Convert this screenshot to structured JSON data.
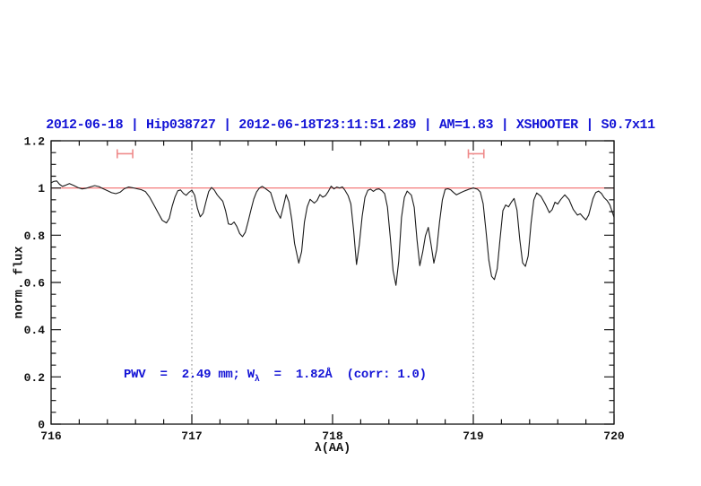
{
  "title": {
    "text": "2012-06-18 | Hip038727 | 2012-06-18T23:11:51.289 | AM=1.83 | XSHOOTER | S0.7x11"
  },
  "annotation": {
    "prefix": "PWV  =  2.49 mm; W",
    "subscript": "λ",
    "suffix": "  =  1.82Å  (corr: 1.0)"
  },
  "chart_data": {
    "type": "line",
    "title": "2012-06-18 | Hip038727 | 2012-06-18T23:11:51.289 | AM=1.83 | XSHOOTER | S0.7x11",
    "xlabel": "λ(AA)",
    "ylabel": "norm. flux",
    "xlim": [
      716,
      720
    ],
    "ylim": [
      0,
      1.2
    ],
    "x_ticks": [
      716,
      717,
      718,
      719,
      720
    ],
    "x_tick_labels": [
      "716",
      "717",
      "718",
      "719",
      "720"
    ],
    "x_minor_step": 0.2,
    "y_ticks": [
      0,
      0.2,
      0.4,
      0.6,
      0.8,
      1,
      1.2
    ],
    "y_tick_labels": [
      "0",
      "0.2",
      "0.4",
      "0.6",
      "0.8",
      "1",
      "1.2"
    ],
    "grid": false,
    "legend": "none",
    "reference_line_y": 1.0,
    "dotted_vlines": [
      717,
      719
    ],
    "range_markers": [
      {
        "x1": 716.47,
        "x2": 716.58,
        "y": 1.145
      },
      {
        "x1": 718.965,
        "x2": 719.075,
        "y": 1.145
      }
    ],
    "colors": {
      "accent_blue": "#1414d6",
      "reference_red": "#f26b6b",
      "marker_red": "#ef8a8a",
      "spectrum": "#1a1a1a",
      "guide_grey": "#777777",
      "frame": "#111111"
    },
    "series": [
      {
        "name": "telluric-spectrum",
        "color": "#1a1a1a",
        "points": [
          [
            716.0,
            1.022
          ],
          [
            716.02,
            1.028
          ],
          [
            716.04,
            1.03
          ],
          [
            716.06,
            1.016
          ],
          [
            716.08,
            1.007
          ],
          [
            716.1,
            1.011
          ],
          [
            716.13,
            1.019
          ],
          [
            716.16,
            1.011
          ],
          [
            716.19,
            1.002
          ],
          [
            716.22,
            0.996
          ],
          [
            716.25,
            0.999
          ],
          [
            716.28,
            1.005
          ],
          [
            716.31,
            1.01
          ],
          [
            716.34,
            1.006
          ],
          [
            716.37,
            0.997
          ],
          [
            716.4,
            0.989
          ],
          [
            716.43,
            0.98
          ],
          [
            716.46,
            0.976
          ],
          [
            716.49,
            0.982
          ],
          [
            716.52,
            0.997
          ],
          [
            716.55,
            1.004
          ],
          [
            716.58,
            1.001
          ],
          [
            716.61,
            0.997
          ],
          [
            716.64,
            0.993
          ],
          [
            716.67,
            0.985
          ],
          [
            716.7,
            0.961
          ],
          [
            716.73,
            0.929
          ],
          [
            716.76,
            0.896
          ],
          [
            716.79,
            0.863
          ],
          [
            716.82,
            0.852
          ],
          [
            716.84,
            0.872
          ],
          [
            716.86,
            0.922
          ],
          [
            716.88,
            0.962
          ],
          [
            716.9,
            0.988
          ],
          [
            716.92,
            0.992
          ],
          [
            716.94,
            0.977
          ],
          [
            716.96,
            0.969
          ],
          [
            716.98,
            0.982
          ],
          [
            717.0,
            0.991
          ],
          [
            717.02,
            0.97
          ],
          [
            717.04,
            0.913
          ],
          [
            717.06,
            0.878
          ],
          [
            717.08,
            0.893
          ],
          [
            717.1,
            0.941
          ],
          [
            717.12,
            0.985
          ],
          [
            717.14,
            1.002
          ],
          [
            717.16,
            0.991
          ],
          [
            717.18,
            0.971
          ],
          [
            717.2,
            0.957
          ],
          [
            717.22,
            0.944
          ],
          [
            717.24,
            0.903
          ],
          [
            717.26,
            0.848
          ],
          [
            717.28,
            0.845
          ],
          [
            717.3,
            0.856
          ],
          [
            717.32,
            0.837
          ],
          [
            717.34,
            0.807
          ],
          [
            717.36,
            0.794
          ],
          [
            717.38,
            0.813
          ],
          [
            717.4,
            0.858
          ],
          [
            717.42,
            0.906
          ],
          [
            717.44,
            0.953
          ],
          [
            717.46,
            0.983
          ],
          [
            717.48,
            1.0
          ],
          [
            717.5,
            1.007
          ],
          [
            717.52,
            0.999
          ],
          [
            717.54,
            0.99
          ],
          [
            717.56,
            0.981
          ],
          [
            717.58,
            0.942
          ],
          [
            717.6,
            0.905
          ],
          [
            717.63,
            0.872
          ],
          [
            717.65,
            0.92
          ],
          [
            717.67,
            0.972
          ],
          [
            717.69,
            0.941
          ],
          [
            717.71,
            0.866
          ],
          [
            717.73,
            0.765
          ],
          [
            717.76,
            0.682
          ],
          [
            717.78,
            0.731
          ],
          [
            717.8,
            0.856
          ],
          [
            717.82,
            0.92
          ],
          [
            717.84,
            0.952
          ],
          [
            717.87,
            0.936
          ],
          [
            717.89,
            0.947
          ],
          [
            717.91,
            0.972
          ],
          [
            717.93,
            0.961
          ],
          [
            717.95,
            0.968
          ],
          [
            717.97,
            0.986
          ],
          [
            717.99,
            1.008
          ],
          [
            718.01,
            0.996
          ],
          [
            718.03,
            1.004
          ],
          [
            718.05,
            1.0
          ],
          [
            718.07,
            1.005
          ],
          [
            718.09,
            0.989
          ],
          [
            718.11,
            0.968
          ],
          [
            718.13,
            0.933
          ],
          [
            718.15,
            0.82
          ],
          [
            718.17,
            0.676
          ],
          [
            718.19,
            0.76
          ],
          [
            718.21,
            0.88
          ],
          [
            718.23,
            0.96
          ],
          [
            718.25,
            0.99
          ],
          [
            718.27,
            0.995
          ],
          [
            718.29,
            0.986
          ],
          [
            718.31,
            0.994
          ],
          [
            718.33,
            0.996
          ],
          [
            718.35,
            0.989
          ],
          [
            718.37,
            0.976
          ],
          [
            718.39,
            0.92
          ],
          [
            718.41,
            0.79
          ],
          [
            718.43,
            0.65
          ],
          [
            718.45,
            0.588
          ],
          [
            718.47,
            0.69
          ],
          [
            718.49,
            0.875
          ],
          [
            718.51,
            0.96
          ],
          [
            718.53,
            0.987
          ],
          [
            718.56,
            0.97
          ],
          [
            718.58,
            0.918
          ],
          [
            718.6,
            0.78
          ],
          [
            718.62,
            0.671
          ],
          [
            718.64,
            0.728
          ],
          [
            718.66,
            0.798
          ],
          [
            718.68,
            0.833
          ],
          [
            718.7,
            0.76
          ],
          [
            718.72,
            0.682
          ],
          [
            718.74,
            0.74
          ],
          [
            718.76,
            0.855
          ],
          [
            718.78,
            0.95
          ],
          [
            718.8,
            0.994
          ],
          [
            718.82,
            0.997
          ],
          [
            718.84,
            0.992
          ],
          [
            718.86,
            0.981
          ],
          [
            718.88,
            0.971
          ],
          [
            718.91,
            0.98
          ],
          [
            718.94,
            0.988
          ],
          [
            718.97,
            0.995
          ],
          [
            719.0,
            1.0
          ],
          [
            719.03,
            0.995
          ],
          [
            719.05,
            0.983
          ],
          [
            719.07,
            0.933
          ],
          [
            719.09,
            0.82
          ],
          [
            719.11,
            0.695
          ],
          [
            719.13,
            0.626
          ],
          [
            719.15,
            0.612
          ],
          [
            719.17,
            0.658
          ],
          [
            719.19,
            0.783
          ],
          [
            719.21,
            0.904
          ],
          [
            719.23,
            0.928
          ],
          [
            719.25,
            0.92
          ],
          [
            719.27,
            0.94
          ],
          [
            719.29,
            0.956
          ],
          [
            719.31,
            0.907
          ],
          [
            719.33,
            0.783
          ],
          [
            719.35,
            0.683
          ],
          [
            719.37,
            0.668
          ],
          [
            719.39,
            0.712
          ],
          [
            719.41,
            0.85
          ],
          [
            719.43,
            0.949
          ],
          [
            719.45,
            0.979
          ],
          [
            719.48,
            0.965
          ],
          [
            719.51,
            0.933
          ],
          [
            719.54,
            0.896
          ],
          [
            719.56,
            0.908
          ],
          [
            719.58,
            0.94
          ],
          [
            719.6,
            0.932
          ],
          [
            719.62,
            0.95
          ],
          [
            719.65,
            0.971
          ],
          [
            719.68,
            0.951
          ],
          [
            719.71,
            0.909
          ],
          [
            719.74,
            0.885
          ],
          [
            719.76,
            0.891
          ],
          [
            719.78,
            0.877
          ],
          [
            719.8,
            0.865
          ],
          [
            719.82,
            0.885
          ],
          [
            719.85,
            0.955
          ],
          [
            719.87,
            0.981
          ],
          [
            719.89,
            0.987
          ],
          [
            719.91,
            0.977
          ],
          [
            719.93,
            0.959
          ],
          [
            719.95,
            0.947
          ],
          [
            719.97,
            0.929
          ],
          [
            719.99,
            0.894
          ],
          [
            720.0,
            0.876
          ]
        ]
      }
    ]
  }
}
